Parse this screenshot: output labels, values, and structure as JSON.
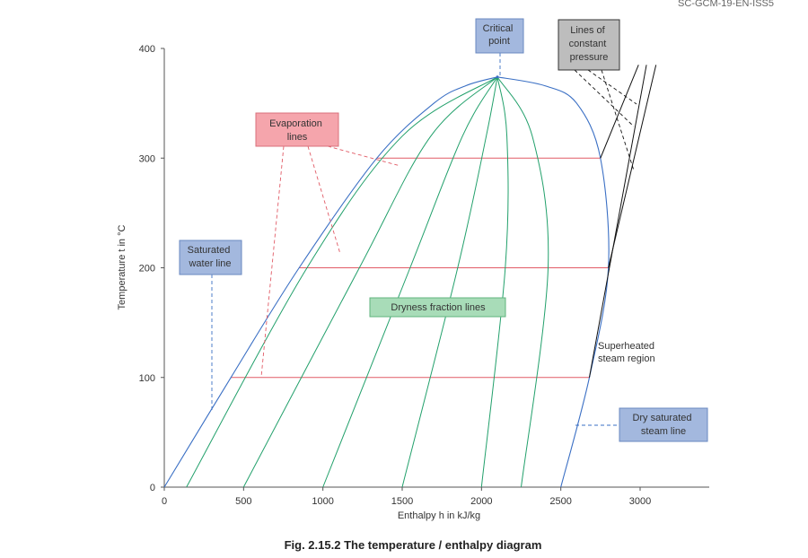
{
  "doc_id": "SC-GCM-19-EN-ISS5",
  "caption": "Fig. 2.15.2 The temperature / enthalpy diagram",
  "chart_data": {
    "type": "line",
    "xlabel": "Enthalpy h in kJ/kg",
    "ylabel": "Temperature t in °C",
    "xlim": [
      0,
      3400
    ],
    "ylim": [
      0,
      400
    ],
    "xticks": [
      "0",
      "500",
      "1000",
      "1500",
      "2000",
      "2500",
      "3000"
    ],
    "yticks": [
      "0",
      "100",
      "200",
      "300",
      "400"
    ],
    "critical_point": [
      2100,
      374
    ],
    "saturated_water_line": [
      [
        0,
        0
      ],
      [
        420,
        100
      ],
      [
        850,
        200
      ],
      [
        1340,
        300
      ],
      [
        1700,
        350
      ],
      [
        1900,
        366
      ],
      [
        2100,
        374
      ]
    ],
    "dry_saturated_steam_line": [
      [
        2500,
        0
      ],
      [
        2680,
        100
      ],
      [
        2800,
        200
      ],
      [
        2750,
        300
      ],
      [
        2600,
        350
      ],
      [
        2400,
        366
      ],
      [
        2100,
        374
      ]
    ],
    "dryness_fraction_lines": [
      [
        [
          140,
          0
        ],
        [
          900,
          200
        ],
        [
          1500,
          320
        ],
        [
          2100,
          374
        ]
      ],
      [
        [
          500,
          0
        ],
        [
          1230,
          200
        ],
        [
          1680,
          320
        ],
        [
          2100,
          374
        ]
      ],
      [
        [
          1000,
          0
        ],
        [
          1550,
          200
        ],
        [
          1880,
          320
        ],
        [
          2100,
          374
        ]
      ],
      [
        [
          1500,
          0
        ],
        [
          1850,
          200
        ],
        [
          2030,
          320
        ],
        [
          2100,
          374
        ]
      ],
      [
        [
          2000,
          0
        ],
        [
          2150,
          200
        ],
        [
          2160,
          320
        ],
        [
          2100,
          374
        ]
      ],
      [
        [
          2250,
          0
        ],
        [
          2420,
          200
        ],
        [
          2320,
          320
        ],
        [
          2100,
          374
        ]
      ]
    ],
    "evaporation_lines": [
      {
        "t": 100,
        "h_from": 420,
        "h_to": 2680
      },
      {
        "t": 200,
        "h_from": 850,
        "h_to": 2800
      },
      {
        "t": 300,
        "h_from": 1340,
        "h_to": 2750
      }
    ],
    "constant_pressure_lines": [
      [
        [
          2680,
          100
        ],
        [
          3040,
          385
        ]
      ],
      [
        [
          2800,
          200
        ],
        [
          3100,
          385
        ]
      ],
      [
        [
          2750,
          300
        ],
        [
          2990,
          385
        ]
      ]
    ],
    "colors": {
      "saturation_line": "#3a6fc4",
      "dryness_lines": "#22a06b",
      "evaporation_lines": "#e15b66",
      "pressure_lines": "#111111",
      "axis": "#555555"
    }
  },
  "labels": {
    "critical_point": [
      "Critical",
      "point"
    ],
    "constant_pressure": [
      "Lines of",
      "constant",
      "pressure"
    ],
    "evaporation": [
      "Evaporation",
      "lines"
    ],
    "saturated_water": [
      "Saturated",
      "water line"
    ],
    "dryness": [
      "Dryness fraction lines"
    ],
    "superheated": [
      "Superheated",
      "steam region"
    ],
    "dry_saturated": [
      "Dry saturated",
      "steam line"
    ]
  }
}
